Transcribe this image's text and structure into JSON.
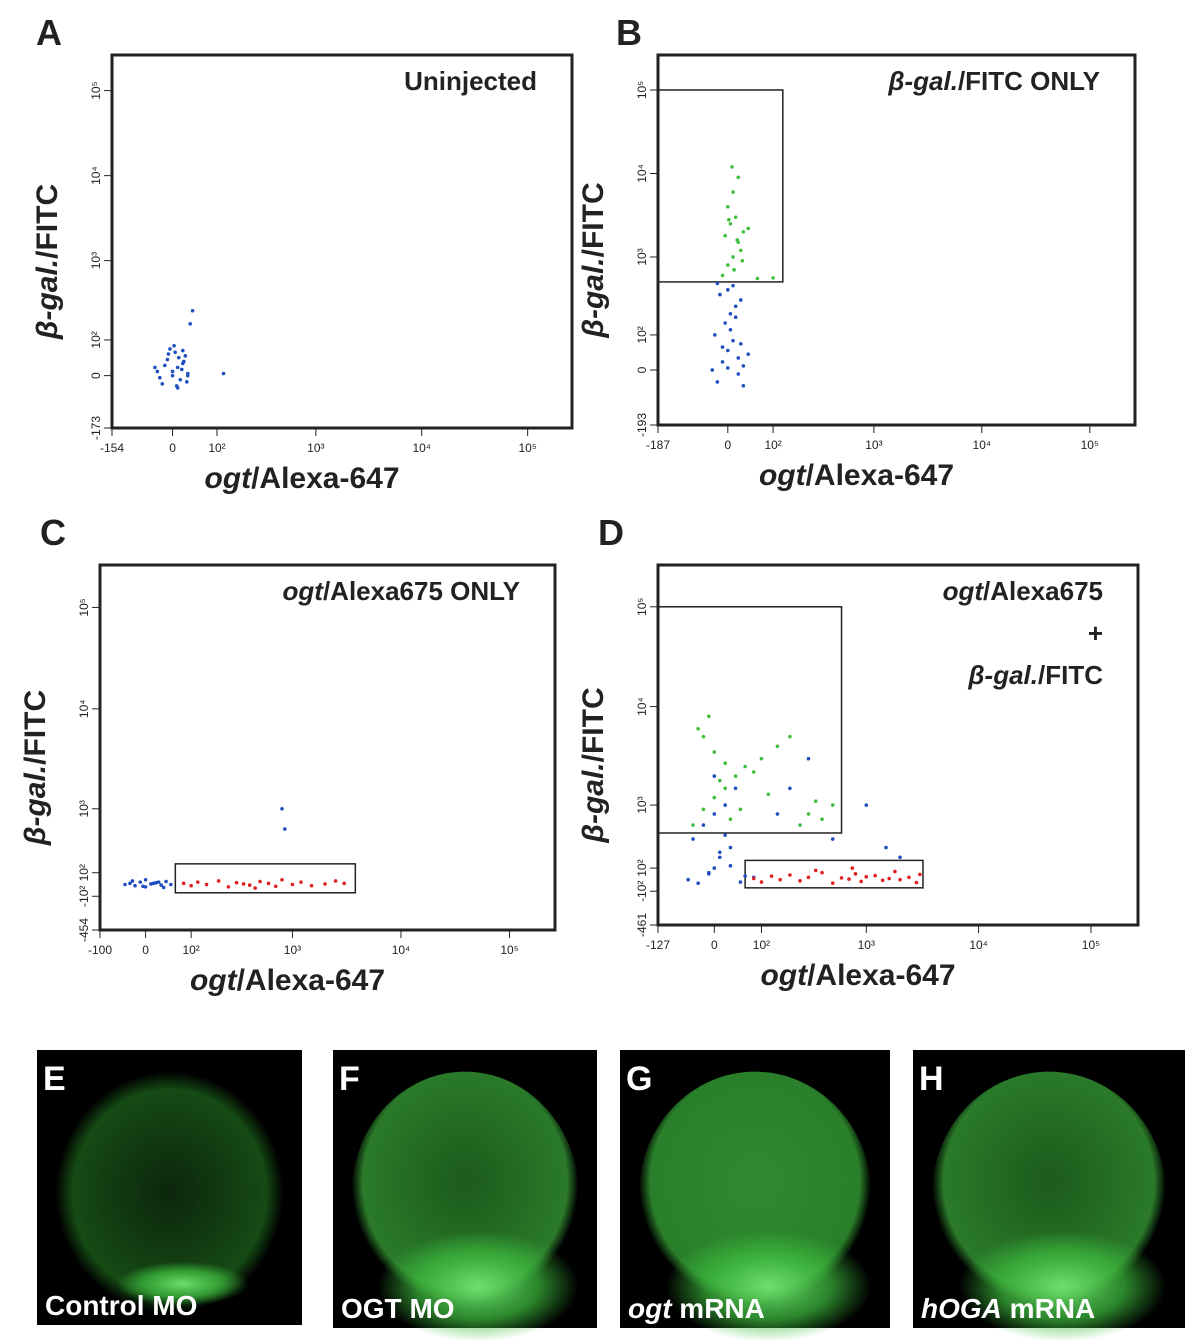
{
  "chart_data": [
    {
      "type": "scatter",
      "panel": "A",
      "annotation": [
        [
          {
            "text": "Uninjected"
          }
        ]
      ],
      "xlabel": [
        {
          "text": "ogt",
          "italic": true
        },
        {
          "text": "/Alexa-647"
        }
      ],
      "ylabel": [
        {
          "text": "β-gal.",
          "italic": true
        },
        {
          "text": "/FITC"
        }
      ],
      "xlim": [
        -154,
        262144
      ],
      "ylim": [
        -173,
        262144
      ],
      "xticks": [
        -154,
        0,
        {
          "value": 100,
          "label": "10²"
        },
        {
          "value": 1000,
          "label": "10³"
        },
        {
          "value": 10000,
          "label": "10⁴"
        },
        {
          "value": 100000,
          "label": "10⁵"
        }
      ],
      "yticks": [
        -173,
        0,
        {
          "value": 100,
          "label": "10²"
        },
        {
          "value": 1000,
          "label": "10³"
        },
        {
          "value": 10000,
          "label": "10⁴"
        },
        {
          "value": 100000,
          "label": "10⁵"
        }
      ],
      "gates": [],
      "series": [
        {
          "color": "#1f4fbf",
          "x": [
            -30,
            -20,
            -10,
            0,
            5,
            10,
            15,
            20,
            25,
            30,
            -25,
            -15,
            -5,
            8,
            12,
            18,
            22,
            -8,
            3,
            28,
            35,
            40,
            -35,
            0,
            10,
            20,
            30,
            120
          ],
          "y": [
            10,
            -20,
            40,
            0,
            60,
            20,
            -10,
            30,
            50,
            5,
            -5,
            25,
            70,
            -25,
            45,
            15,
            35,
            55,
            80,
            -15,
            170,
            250,
            20,
            10,
            -30,
            65,
            0,
            5
          ]
        }
      ]
    },
    {
      "type": "scatter",
      "panel": "B",
      "annotation": [
        [
          {
            "text": "β-gal.",
            "italic": true
          },
          {
            "text": "/FITC ONLY"
          }
        ]
      ],
      "xlabel": [
        {
          "text": "ogt",
          "italic": true
        },
        {
          "text": "/Alexa-647"
        }
      ],
      "ylabel": [
        {
          "text": "β-gal.",
          "italic": true
        },
        {
          "text": "/FITC"
        }
      ],
      "xlim": [
        -187,
        262144
      ],
      "ylim": [
        -193,
        262144
      ],
      "xticks": [
        -187,
        0,
        {
          "value": 100,
          "label": "10²"
        },
        {
          "value": 1000,
          "label": "10³"
        },
        {
          "value": 10000,
          "label": "10⁴"
        },
        {
          "value": 100000,
          "label": "10⁵"
        }
      ],
      "yticks": [
        -193,
        0,
        {
          "value": 100,
          "label": "10²"
        },
        {
          "value": 1000,
          "label": "10³"
        },
        {
          "value": 10000,
          "label": "10⁴"
        },
        {
          "value": 100000,
          "label": "10⁵"
        }
      ],
      "gates": [
        {
          "x": [
            -187,
            130
          ],
          "y": [
            500,
            100000
          ]
        }
      ],
      "series": [
        {
          "color": "#1f4fbf",
          "x": [
            -30,
            -20,
            -10,
            0,
            10,
            20,
            30,
            -25,
            -5,
            5,
            15,
            25,
            -15,
            0,
            10,
            20,
            -10,
            5,
            15,
            30,
            40,
            -20,
            0,
            25
          ],
          "y": [
            0,
            -30,
            20,
            50,
            80,
            -10,
            10,
            100,
            150,
            200,
            250,
            300,
            350,
            400,
            450,
            30,
            60,
            120,
            180,
            -40,
            40,
            480,
            5,
            70
          ]
        },
        {
          "color": "#3fbf3f",
          "x": [
            -10,
            0,
            10,
            20,
            30,
            5,
            15,
            25,
            -5,
            40,
            0,
            10,
            20,
            8,
            12,
            18,
            2,
            28,
            60,
            100
          ],
          "y": [
            600,
            800,
            1000,
            1500,
            2000,
            2500,
            3000,
            1200,
            1800,
            2200,
            4000,
            6000,
            9000,
            12000,
            700,
            1600,
            2800,
            900,
            550,
            560
          ]
        }
      ]
    },
    {
      "type": "scatter",
      "panel": "C",
      "annotation": [
        [
          {
            "text": "ogt",
            "italic": true
          },
          {
            "text": "/Alexa675 ONLY"
          }
        ]
      ],
      "xlabel": [
        {
          "text": "ogt",
          "italic": true
        },
        {
          "text": "/Alexa-647"
        }
      ],
      "ylabel": [
        {
          "text": "β-gal.",
          "italic": true
        },
        {
          "text": "/FITC"
        }
      ],
      "xlim": [
        -100,
        262144
      ],
      "ylim": [
        -454,
        262144
      ],
      "xticks": [
        -100,
        0,
        {
          "value": 100,
          "label": "10²"
        },
        {
          "value": 1000,
          "label": "10³"
        },
        {
          "value": 10000,
          "label": "10⁴"
        },
        {
          "value": 100000,
          "label": "10⁵"
        }
      ],
      "yticks": [
        -454,
        {
          "value": -100,
          "label": "-10²"
        },
        {
          "value": 100,
          "label": "10²"
        },
        {
          "value": 1000,
          "label": "10³"
        },
        {
          "value": 10000,
          "label": "10⁴"
        },
        {
          "value": 100000,
          "label": "10⁵"
        }
      ],
      "gates": [
        {
          "x": [
            60,
            3800
          ],
          "y": [
            -70,
            180
          ]
        }
      ],
      "series": [
        {
          "color": "#1f4fbf",
          "x": [
            -40,
            -30,
            -20,
            -10,
            0,
            10,
            20,
            30,
            40,
            50,
            -25,
            -5,
            15,
            35,
            0,
            25,
            800,
            850
          ],
          "y": [
            0,
            10,
            -10,
            20,
            -20,
            5,
            15,
            -5,
            25,
            0,
            30,
            -15,
            10,
            -25,
            40,
            20,
            1000,
            600
          ]
        },
        {
          "color": "#e02020",
          "x": [
            80,
            100,
            120,
            150,
            200,
            250,
            300,
            350,
            400,
            500,
            600,
            700,
            800,
            1000,
            1200,
            1500,
            2000,
            2500,
            3000,
            450
          ],
          "y": [
            10,
            -10,
            20,
            0,
            30,
            -20,
            15,
            5,
            -5,
            25,
            10,
            -15,
            40,
            0,
            20,
            -10,
            5,
            30,
            10,
            -30
          ]
        }
      ]
    },
    {
      "type": "scatter",
      "panel": "D",
      "annotation": [
        [
          {
            "text": "ogt",
            "italic": true
          },
          {
            "text": "/Alexa675"
          }
        ],
        [
          {
            "text": "+"
          }
        ],
        [
          {
            "text": "β-gal.",
            "italic": true
          },
          {
            "text": "/FITC"
          }
        ]
      ],
      "xlabel": [
        {
          "text": "ogt",
          "italic": true
        },
        {
          "text": "/Alexa-647"
        }
      ],
      "ylabel": [
        {
          "text": "β-gal.",
          "italic": true
        },
        {
          "text": "/FITC"
        }
      ],
      "xlim": [
        -127,
        262144
      ],
      "ylim": [
        -461,
        262144
      ],
      "xticks": [
        -127,
        0,
        {
          "value": 100,
          "label": "10²"
        },
        {
          "value": 1000,
          "label": "10³"
        },
        {
          "value": 10000,
          "label": "10⁴"
        },
        {
          "value": 100000,
          "label": "10⁵"
        }
      ],
      "yticks": [
        -461,
        {
          "value": -100,
          "label": "-10²"
        },
        {
          "value": 100,
          "label": "10²"
        },
        {
          "value": 1000,
          "label": "10³"
        },
        {
          "value": 10000,
          "label": "10⁴"
        },
        {
          "value": 100000,
          "label": "10⁵"
        }
      ],
      "gates": [
        {
          "x": [
            -127,
            600
          ],
          "y": [
            480,
            100000
          ]
        },
        {
          "x": [
            60,
            3200
          ],
          "y": [
            -70,
            170
          ]
        }
      ],
      "series": [
        {
          "color": "#1f4fbf",
          "x": [
            -50,
            -30,
            -10,
            0,
            10,
            30,
            50,
            80,
            -40,
            -20,
            0,
            20,
            40,
            60,
            -10,
            10,
            30,
            0,
            20,
            150,
            200,
            300,
            500,
            1000,
            1500,
            2000
          ],
          "y": [
            0,
            -30,
            50,
            100,
            200,
            300,
            -20,
            20,
            400,
            600,
            800,
            1000,
            1500,
            30,
            60,
            250,
            120,
            2000,
            450,
            800,
            1500,
            3000,
            400,
            1000,
            300,
            200
          ]
        },
        {
          "color": "#3fbf3f",
          "x": [
            -40,
            -20,
            0,
            20,
            40,
            60,
            100,
            150,
            200,
            300,
            400,
            500,
            -30,
            -10,
            10,
            30,
            80,
            120,
            250,
            0,
            50,
            20,
            350,
            -20
          ],
          "y": [
            600,
            900,
            1200,
            1500,
            2000,
            2500,
            3000,
            4000,
            5000,
            800,
            700,
            1000,
            6000,
            8000,
            1800,
            700,
            2200,
            1300,
            600,
            3500,
            900,
            2700,
            1100,
            5000
          ]
        },
        {
          "color": "#e02020",
          "x": [
            80,
            100,
            130,
            160,
            200,
            250,
            300,
            400,
            500,
            600,
            700,
            800,
            900,
            1000,
            1200,
            1400,
            1600,
            1800,
            2000,
            2400,
            2800,
            3000,
            350,
            750
          ],
          "y": [
            10,
            -20,
            30,
            0,
            40,
            -10,
            20,
            60,
            -30,
            15,
            5,
            50,
            -15,
            25,
            35,
            -5,
            10,
            70,
            0,
            20,
            -25,
            45,
            80,
            100
          ]
        }
      ]
    }
  ],
  "photos": [
    {
      "letter": "E",
      "caption": [
        {
          "text": "Control MO"
        }
      ]
    },
    {
      "letter": "F",
      "caption": [
        {
          "text": "OGT MO"
        }
      ]
    },
    {
      "letter": "G",
      "caption": [
        {
          "text": "ogt",
          "italic": true
        },
        {
          "text": " mRNA"
        }
      ]
    },
    {
      "letter": "H",
      "caption": [
        {
          "text": "hOGA",
          "italic": true
        },
        {
          "text": " mRNA"
        }
      ]
    }
  ]
}
